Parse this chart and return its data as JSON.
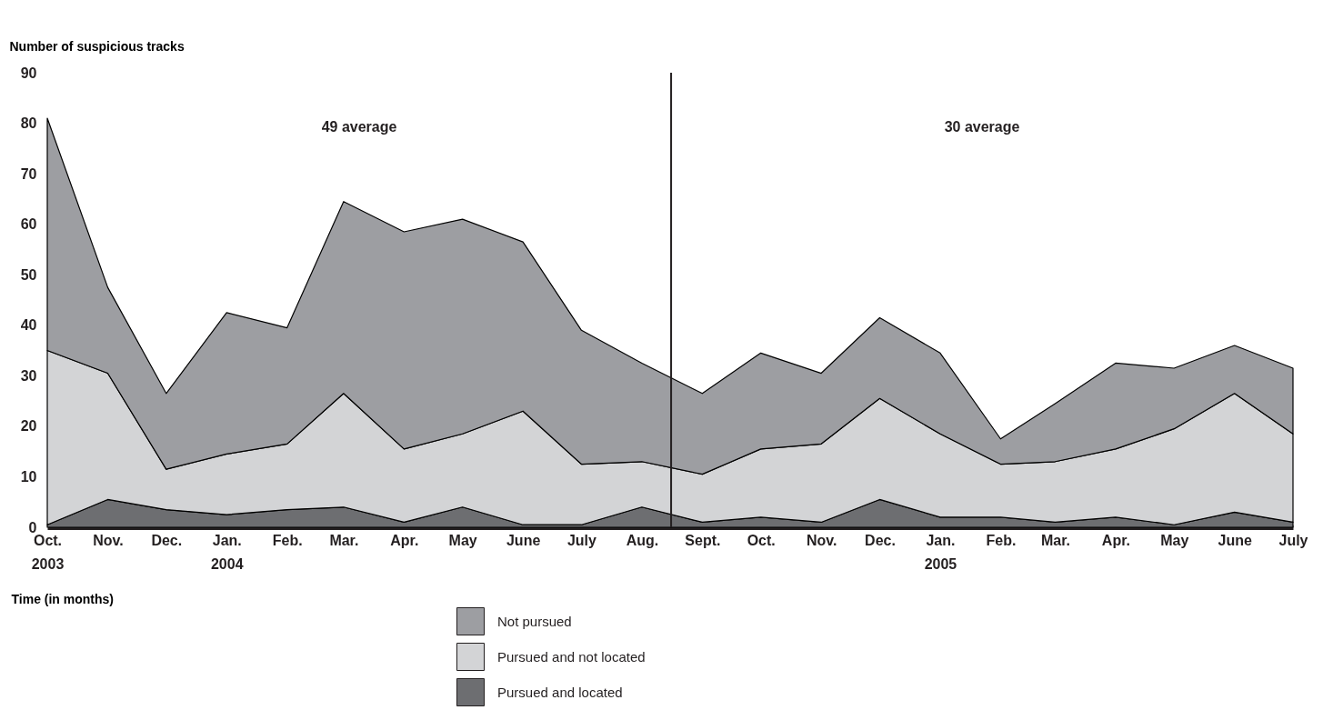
{
  "chart_data": {
    "type": "area",
    "stacked": true,
    "ylabel": "Number of suspicious tracks",
    "xlabel": "Time (in months)",
    "x": [
      "2003-10",
      "2003-11",
      "2003-12",
      "2004-01",
      "2004-02",
      "2004-03",
      "2004-04",
      "2004-05",
      "2004-06",
      "2004-07",
      "2004-08",
      "2004-09",
      "2004-10",
      "2004-11",
      "2004-12",
      "2005-01",
      "2005-02",
      "2005-03",
      "2005-04",
      "2005-05",
      "2005-06",
      "2005-07"
    ],
    "series": [
      {
        "name": "Pursued and located",
        "color": "#6d6e71",
        "values": [
          0.5,
          5.5,
          3.5,
          2.5,
          3.5,
          4,
          1,
          4,
          0.5,
          0.5,
          4,
          1,
          2,
          1,
          5.5,
          2,
          2,
          1,
          2,
          0.5,
          3,
          1
        ]
      },
      {
        "name": "Pursued and not located",
        "color": "#d3d4d6",
        "values": [
          34.5,
          25,
          8,
          12,
          13,
          22.5,
          14.5,
          14.5,
          22.5,
          12,
          9,
          9.5,
          13.5,
          15.5,
          20,
          16.5,
          10.5,
          12,
          13.5,
          19,
          23.5,
          17.5
        ]
      },
      {
        "name": "Not pursued",
        "color": "#9d9ea2",
        "values": [
          46,
          17,
          15,
          28,
          23,
          38,
          43,
          42.5,
          33.5,
          26.5,
          19.5,
          16,
          19,
          14,
          16,
          16,
          5,
          11.5,
          17,
          12,
          9.5,
          13
        ]
      }
    ],
    "xlim": [
      "2003-10",
      "2005-07"
    ],
    "xticks": [
      {
        "value": "2003-10",
        "label": "Oct.\n2003"
      },
      {
        "value": "2003-11",
        "label": "Nov."
      },
      {
        "value": "2003-12",
        "label": "Dec."
      },
      {
        "value": "2004-01",
        "label": "Jan.\n2004"
      },
      {
        "value": "2004-02",
        "label": "Feb."
      },
      {
        "value": "2004-03",
        "label": "Mar."
      },
      {
        "value": "2004-04",
        "label": "Apr."
      },
      {
        "value": "2004-05",
        "label": "May"
      },
      {
        "value": "2004-06",
        "label": "June"
      },
      {
        "value": "2004-07",
        "label": "July"
      },
      {
        "value": "2004-08",
        "label": "Aug."
      },
      {
        "value": "2004-09",
        "label": "Sept."
      },
      {
        "value": "2004-10",
        "label": "Oct."
      },
      {
        "value": "2004-11",
        "label": "Nov."
      },
      {
        "value": "2004-12",
        "label": "Dec."
      },
      {
        "value": "2005-01",
        "label": "Jan.\n2005"
      },
      {
        "value": "2005-02",
        "label": "Feb."
      },
      {
        "value": "2005-03",
        "label": "Mar."
      },
      {
        "value": "2005-04",
        "label": "Apr."
      },
      {
        "value": "2005-05",
        "label": "May"
      },
      {
        "value": "2005-06",
        "label": "June"
      },
      {
        "value": "2005-07",
        "label": "July"
      }
    ],
    "ylim": [
      0,
      90
    ],
    "yticks": [
      0,
      10,
      20,
      30,
      40,
      50,
      60,
      70,
      80,
      90
    ],
    "ref_lines": [
      {
        "axis": "x",
        "value": "2004-08-16",
        "color": "#231f20"
      }
    ],
    "annotations": [
      "49 average",
      "30 average"
    ],
    "legend": "bottom",
    "grid": false
  }
}
